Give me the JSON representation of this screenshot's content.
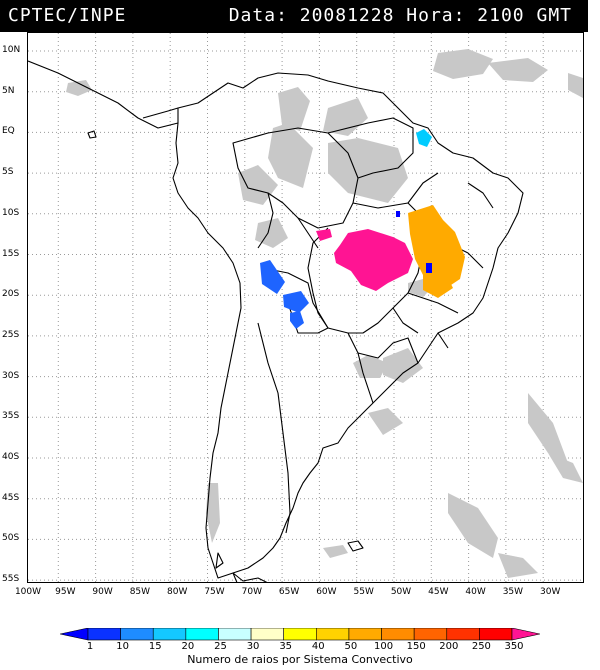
{
  "header": {
    "left_text": "CPTEC/INPE",
    "right_text": "Data: 20081228 Hora: 2100 GMT"
  },
  "lat_labels": [
    "10N",
    "5N",
    "EQ",
    "5S",
    "10S",
    "15S",
    "20S",
    "25S",
    "30S",
    "35S",
    "40S",
    "45S",
    "50S",
    "55S"
  ],
  "lon_labels": [
    "100W",
    "95W",
    "90W",
    "85W",
    "80W",
    "75W",
    "70W",
    "65W",
    "60W",
    "55W",
    "50W",
    "45W",
    "40W",
    "35W",
    "30W"
  ],
  "legend": {
    "ticks": [
      "1",
      "10",
      "15",
      "20",
      "25",
      "30",
      "35",
      "40",
      "50",
      "100",
      "150",
      "200",
      "250",
      "350"
    ],
    "colors": [
      "#0000ff",
      "#0a32ff",
      "#1e8cff",
      "#14c8ff",
      "#00ffff",
      "#c8ffff",
      "#ffffc8",
      "#ffff00",
      "#ffd200",
      "#ffaa00",
      "#ff8c00",
      "#ff6400",
      "#ff3200",
      "#ff0000",
      "#ff1493"
    ],
    "title": "Numero de raios por Sistema Convectivo"
  },
  "colors": {
    "header_bg": "#000000",
    "land_outline": "#000000",
    "cloud": "#c8c8c8",
    "grid": "#9a9a9a"
  }
}
